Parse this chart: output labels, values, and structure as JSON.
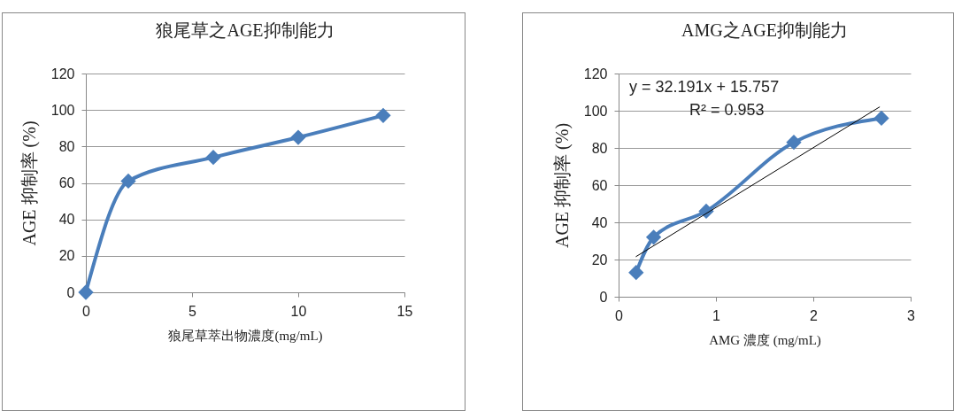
{
  "chart_data": [
    {
      "type": "line",
      "title": "狼尾草之AGE抑制能力",
      "xlabel": "狼尾草萃出物濃度(mg/mL)",
      "ylabel": "AGE 抑制率 (%)",
      "xlim": [
        0,
        15
      ],
      "xticks": [
        0,
        5,
        10,
        15
      ],
      "ylim": [
        0,
        120
      ],
      "yticks": [
        0,
        20,
        40,
        60,
        80,
        100,
        120
      ],
      "grid": "y",
      "marker": "diamond",
      "line_style": "solid",
      "series": [
        {
          "color": "#4a7ebb",
          "x": [
            0,
            2,
            6,
            10,
            14
          ],
          "values": [
            0,
            61,
            74,
            85,
            97
          ]
        }
      ]
    },
    {
      "type": "line",
      "title": "AMG之AGE抑制能力",
      "xlabel": "AMG 濃度 (mg/mL)",
      "ylabel": "AGE 抑制率 (%)",
      "xlim": [
        0,
        3
      ],
      "xticks": [
        0,
        1,
        2,
        3
      ],
      "ylim": [
        0,
        120
      ],
      "yticks": [
        0,
        20,
        40,
        60,
        80,
        100,
        120
      ],
      "grid": "y",
      "marker": "diamond",
      "line_style": "solid",
      "annotations": [
        "y = 32.191x + 15.757",
        "R² = 0.953"
      ],
      "series": [
        {
          "color": "#4a7ebb",
          "x": [
            0.18,
            0.36,
            0.9,
            1.8,
            2.7
          ],
          "values": [
            13,
            32,
            46,
            83,
            96
          ]
        },
        {
          "type": "line",
          "color": "#000000",
          "marker": "none",
          "x": [
            0.18,
            2.68
          ],
          "values": [
            21.6,
            102.0
          ]
        }
      ]
    }
  ]
}
